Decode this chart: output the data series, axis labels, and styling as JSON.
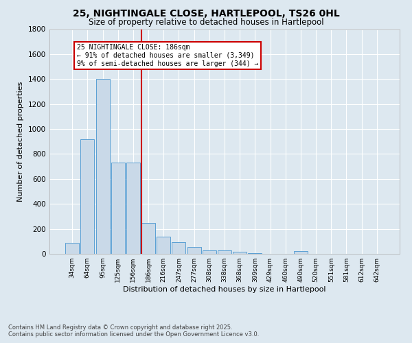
{
  "title_line1": "25, NIGHTINGALE CLOSE, HARTLEPOOL, TS26 0HL",
  "title_line2": "Size of property relative to detached houses in Hartlepool",
  "xlabel": "Distribution of detached houses by size in Hartlepool",
  "ylabel": "Number of detached properties",
  "categories": [
    "34sqm",
    "64sqm",
    "95sqm",
    "125sqm",
    "156sqm",
    "186sqm",
    "216sqm",
    "247sqm",
    "277sqm",
    "308sqm",
    "338sqm",
    "368sqm",
    "399sqm",
    "429sqm",
    "460sqm",
    "490sqm",
    "520sqm",
    "551sqm",
    "581sqm",
    "612sqm",
    "642sqm"
  ],
  "values": [
    90,
    920,
    1400,
    730,
    730,
    250,
    140,
    95,
    55,
    30,
    25,
    15,
    5,
    0,
    0,
    20,
    0,
    0,
    0,
    0,
    0
  ],
  "bar_color": "#c9d9e8",
  "bar_edge_color": "#5a9fd4",
  "vline_color": "#cc0000",
  "vline_index": 4.55,
  "annotation_text": "25 NIGHTINGALE CLOSE: 186sqm\n← 91% of detached houses are smaller (3,349)\n9% of semi-detached houses are larger (344) →",
  "annotation_box_facecolor": "#ffffff",
  "annotation_box_edgecolor": "#cc0000",
  "ylim": [
    0,
    1800
  ],
  "yticks": [
    0,
    200,
    400,
    600,
    800,
    1000,
    1200,
    1400,
    1600,
    1800
  ],
  "background_color": "#dde8f0",
  "grid_color": "#ffffff",
  "footer_line1": "Contains HM Land Registry data © Crown copyright and database right 2025.",
  "footer_line2": "Contains public sector information licensed under the Open Government Licence v3.0."
}
